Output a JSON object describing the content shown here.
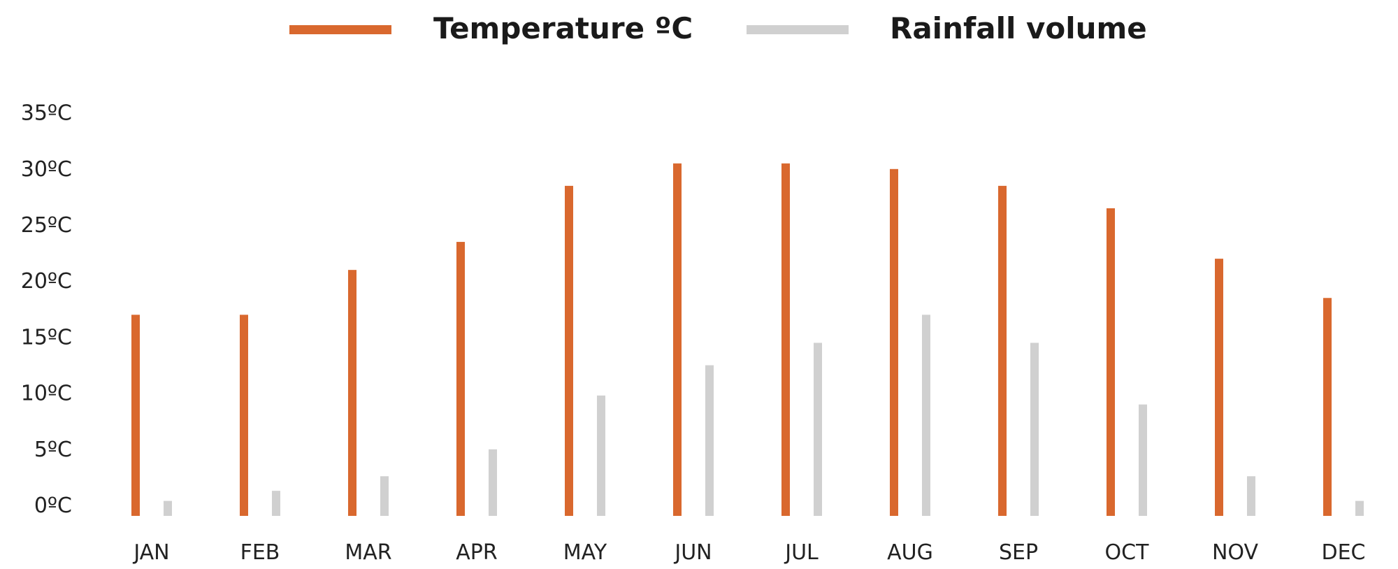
{
  "legend": {
    "temperature": {
      "label": "Temperature ºC",
      "color": "#d9682e"
    },
    "rainfall": {
      "label": "Rainfall volume",
      "color": "#d0d0d0"
    }
  },
  "chart_data": {
    "type": "bar",
    "categories": [
      "JAN",
      "FEB",
      "MAR",
      "APR",
      "MAY",
      "JUN",
      "JUL",
      "AUG",
      "SEP",
      "OCT",
      "NOV",
      "DEC"
    ],
    "series": [
      {
        "name": "Temperature ºC",
        "color": "#d9682e",
        "values": [
          17,
          17,
          21,
          23.5,
          28.5,
          30.5,
          30.5,
          30,
          28.5,
          26.5,
          22,
          18.5
        ]
      },
      {
        "name": "Rainfall volume",
        "color": "#d0d0d0",
        "values": [
          0.4,
          1.3,
          2.6,
          5,
          9.8,
          12.5,
          14.5,
          17,
          14.5,
          9,
          2.6,
          0.4
        ]
      }
    ],
    "yticks": [
      0,
      5,
      10,
      15,
      20,
      25,
      30,
      35
    ],
    "ytick_labels": [
      "0ºC",
      "5ºC",
      "10ºC",
      "15ºC",
      "20ºC",
      "25ºC",
      "30ºC",
      "35ºC"
    ],
    "ylim": [
      0,
      35
    ],
    "grid": false,
    "legend_position": "top"
  }
}
